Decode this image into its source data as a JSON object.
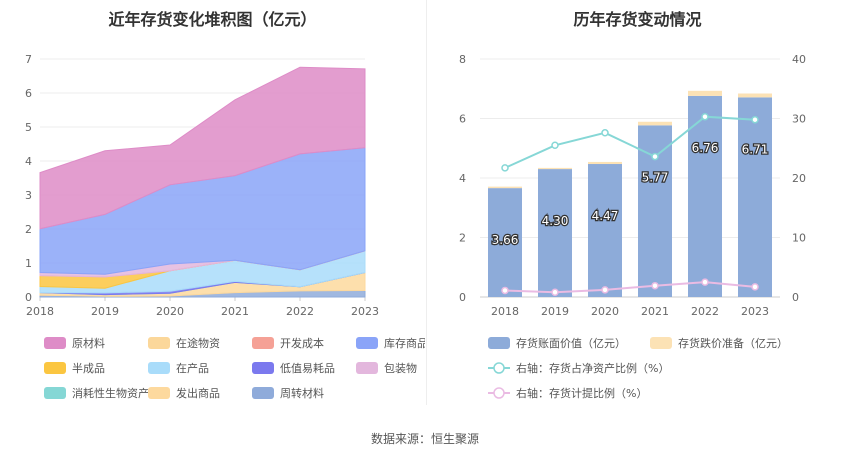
{
  "left_title": "近年存货变化堆积图（亿元）",
  "right_title": "历年存货变动情况",
  "source": "数据来源：恒生聚源",
  "chart_data": [
    {
      "type": "area",
      "stacked": true,
      "title": "近年存货变化堆积图（亿元）",
      "x": [
        "2018",
        "2019",
        "2020",
        "2021",
        "2022",
        "2023"
      ],
      "yticks": [
        "0",
        "1",
        "2",
        "3",
        "4",
        "5",
        "6",
        "7"
      ],
      "ylim": [
        0,
        7
      ],
      "grid": true,
      "legend_position": "bottom",
      "stack_order": [
        "周转材料",
        "发出商品",
        "消耗性生物资产",
        "低值易耗品",
        "在产品",
        "半成品",
        "在途物资",
        "开发成本",
        "包装物",
        "库存商品",
        "原材料"
      ],
      "series": [
        {
          "name": "原材料",
          "color": "#de8cc7",
          "values": [
            1.65,
            1.87,
            1.17,
            2.23,
            2.55,
            2.32
          ]
        },
        {
          "name": "在途物资",
          "color": "#fbd79a",
          "values": [
            0,
            0,
            0,
            0,
            0,
            0
          ]
        },
        {
          "name": "开发成本",
          "color": "#f5a196",
          "values": [
            0,
            0,
            0,
            0,
            0,
            0
          ]
        },
        {
          "name": "库存商品",
          "color": "#8aa4f8",
          "values": [
            1.29,
            1.76,
            2.33,
            2.49,
            3.41,
            3.03
          ]
        },
        {
          "name": "半成品",
          "color": "#fbc641",
          "values": [
            0.32,
            0.33,
            0,
            0,
            0,
            0
          ]
        },
        {
          "name": "在产品",
          "color": "#a9dcfa",
          "values": [
            0.18,
            0.14,
            0.6,
            0.62,
            0.5,
            0.64
          ]
        },
        {
          "name": "低值易耗品",
          "color": "#7b79ee",
          "values": [
            0,
            0.05,
            0.06,
            0.03,
            0,
            0
          ]
        },
        {
          "name": "包装物",
          "color": "#e3b7dd",
          "values": [
            0.09,
            0.08,
            0.2,
            0,
            0,
            0
          ]
        },
        {
          "name": "消耗性生物资产",
          "color": "#85d7d5",
          "values": [
            0,
            0,
            0,
            0,
            0,
            0
          ]
        },
        {
          "name": "发出商品",
          "color": "#fdd99e",
          "values": [
            0.08,
            0.05,
            0.08,
            0.3,
            0.12,
            0.53
          ]
        },
        {
          "name": "周转材料",
          "color": "#8fabda",
          "values": [
            0.05,
            0.02,
            0.03,
            0.13,
            0.18,
            0.19
          ]
        }
      ]
    },
    {
      "type": "bar",
      "title": "历年存货变动情况",
      "categories": [
        "2018",
        "2019",
        "2020",
        "2021",
        "2022",
        "2023"
      ],
      "ylim": [
        0,
        8
      ],
      "yticks_left": [
        "0",
        "2",
        "4",
        "6",
        "8"
      ],
      "ylim_right": [
        0,
        40
      ],
      "yticks_right": [
        "0",
        "10",
        "20",
        "30",
        "40"
      ],
      "grid": true,
      "legend_position": "bottom",
      "bars": [
        {
          "name": "存货账面价值（亿元）",
          "color": "#8dabd9",
          "values": [
            3.66,
            4.3,
            4.47,
            5.77,
            6.76,
            6.71
          ],
          "labels": [
            "3.66",
            "4.30",
            "4.47",
            "5.77",
            "6.76",
            "6.71"
          ]
        },
        {
          "name": "存货跌价准备（亿元）",
          "color": "#fce2b5",
          "values": [
            0.05,
            0.04,
            0.07,
            0.12,
            0.17,
            0.13
          ]
        }
      ],
      "lines": [
        {
          "name": "右轴：存货占净资产比例（%）",
          "color": "#86d7d6",
          "axis": "right",
          "values": [
            21.7,
            25.5,
            27.6,
            23.6,
            30.3,
            29.8
          ]
        },
        {
          "name": "右轴：存货计提比例（%）",
          "color": "#eabbe3",
          "axis": "right",
          "values": [
            1.1,
            0.8,
            1.2,
            1.9,
            2.5,
            1.7
          ]
        }
      ]
    }
  ]
}
